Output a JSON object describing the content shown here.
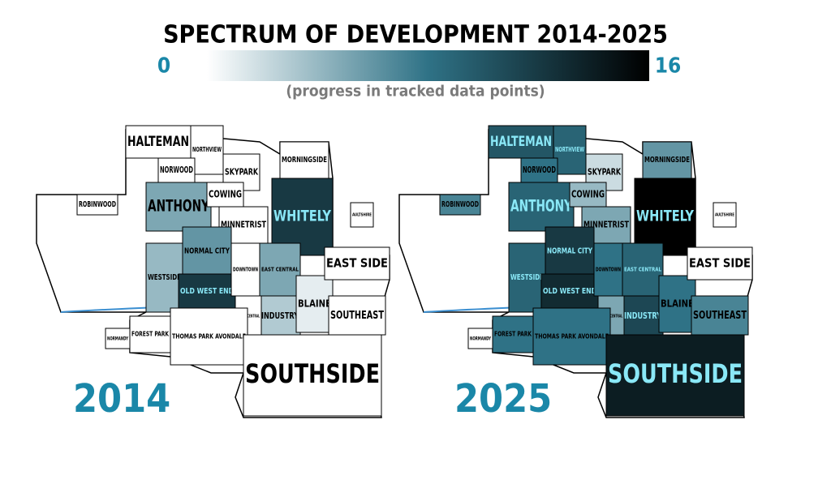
{
  "title": "SPECTRUM OF DEVELOPMENT 2014-2025",
  "scale": {
    "min": 0,
    "max": 16,
    "caption": "(progress in tracked data points)",
    "colors": [
      "#ffffff",
      "#2f7286",
      "#000000"
    ]
  },
  "maps": [
    {
      "year": "2014"
    },
    {
      "year": "2025"
    }
  ],
  "neighborhoods": [
    {
      "name": "HALTEMAN",
      "values": [
        0,
        10
      ]
    },
    {
      "name": "NORTHVIEW",
      "values": [
        0,
        9
      ]
    },
    {
      "name": "NORWOOD",
      "values": [
        0,
        8
      ]
    },
    {
      "name": "SKYPARK",
      "values": [
        0,
        2
      ]
    },
    {
      "name": "MORNINGSIDE",
      "values": [
        0,
        6
      ]
    },
    {
      "name": "ANTHONY",
      "values": [
        5,
        9
      ]
    },
    {
      "name": "COWING",
      "values": [
        0,
        4
      ]
    },
    {
      "name": "WHITELY",
      "values": [
        12,
        16
      ]
    },
    {
      "name": "MINNETRIST",
      "values": [
        0,
        5
      ]
    },
    {
      "name": "ROBINWOOD",
      "values": [
        0,
        7
      ]
    },
    {
      "name": "WESTSIDE",
      "values": [
        4,
        9
      ]
    },
    {
      "name": "NORMAL CITY",
      "values": [
        6,
        12
      ]
    },
    {
      "name": "OLD WEST END",
      "values": [
        12,
        13
      ]
    },
    {
      "name": "DOWNTOWN",
      "values": [
        0,
        8
      ]
    },
    {
      "name": "EAST CENTRAL",
      "values": [
        5,
        9
      ]
    },
    {
      "name": "INDUSTRY",
      "values": [
        3,
        11
      ]
    },
    {
      "name": "BLAINE",
      "values": [
        1,
        8
      ]
    },
    {
      "name": "SOUTHEAST",
      "values": [
        0,
        7
      ]
    },
    {
      "name": "EAST SIDE",
      "values": [
        0,
        0
      ]
    },
    {
      "name": "SOUTH CENTRAL",
      "values": [
        0,
        5
      ]
    },
    {
      "name": "THOMAS PARK AVONDALE",
      "values": [
        0,
        8
      ]
    },
    {
      "name": "FOREST PARK",
      "values": [
        0,
        8
      ]
    },
    {
      "name": "NORMANDY",
      "values": [
        0,
        0
      ]
    },
    {
      "name": "AULTSHIRE",
      "values": [
        0,
        0
      ]
    },
    {
      "name": "SOUTHSIDE",
      "values": [
        0,
        14
      ]
    }
  ]
}
